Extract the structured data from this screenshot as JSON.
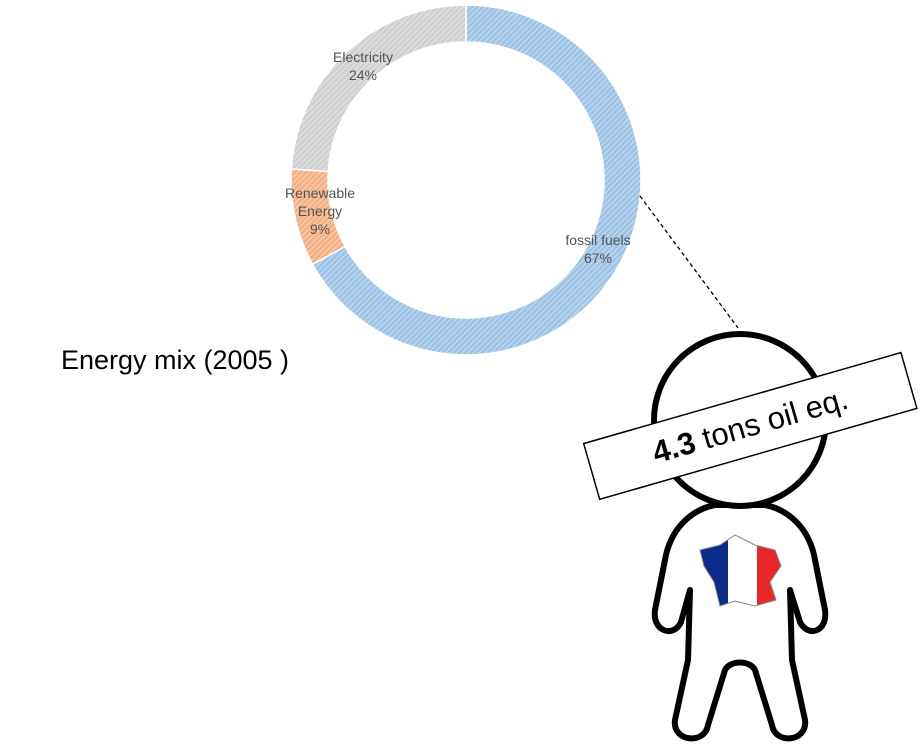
{
  "chart_data": {
    "type": "donut",
    "title": "Energy mix (2005 )",
    "categories": [
      "fossil fuels",
      "Renewable Energy",
      "Electricity"
    ],
    "values": [
      67,
      9,
      24
    ],
    "value_labels": [
      "67%",
      "9%",
      "24%"
    ],
    "colors": [
      "#9dc3e6",
      "#f4b183",
      "#d0d0d0"
    ],
    "annotation": {
      "value": 4.3,
      "text": "tons oil eq."
    }
  }
}
